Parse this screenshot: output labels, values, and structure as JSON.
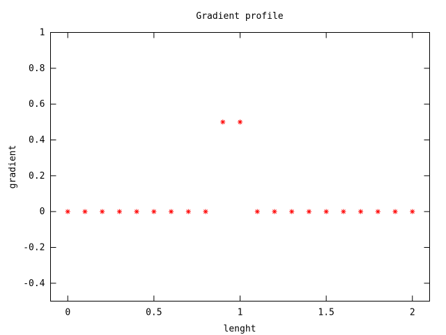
{
  "chart_data": {
    "type": "scatter",
    "title": "Gradient profile",
    "xlabel": "lenght",
    "ylabel": "gradient",
    "xlim": [
      -0.1,
      2.1
    ],
    "ylim": [
      -0.5,
      1
    ],
    "xticks": [
      {
        "value": 0,
        "label": "0"
      },
      {
        "value": 0.5,
        "label": "0.5"
      },
      {
        "value": 1,
        "label": "1"
      },
      {
        "value": 1.5,
        "label": "1.5"
      },
      {
        "value": 2,
        "label": "2"
      }
    ],
    "yticks": [
      {
        "value": -0.4,
        "label": "-0.4"
      },
      {
        "value": -0.2,
        "label": "-0.2"
      },
      {
        "value": 0,
        "label": "0"
      },
      {
        "value": 0.2,
        "label": "0.2"
      },
      {
        "value": 0.4,
        "label": "0.4"
      },
      {
        "value": 0.6,
        "label": "0.6"
      },
      {
        "value": 0.8,
        "label": "0.8"
      },
      {
        "value": 1,
        "label": "1"
      }
    ],
    "grid": false,
    "marker": "star",
    "color": "#ff0000",
    "series": [
      {
        "x": [
          0,
          0.1,
          0.2,
          0.3,
          0.4,
          0.5,
          0.6,
          0.7,
          0.8,
          0.9,
          1.0,
          1.1,
          1.2,
          1.3,
          1.4,
          1.5,
          1.6,
          1.7,
          1.8,
          1.9,
          2.0
        ],
        "y": [
          0,
          0,
          0,
          0,
          0,
          0,
          0,
          0,
          0,
          0.5,
          0.5,
          0,
          0,
          0,
          0,
          0,
          0,
          0,
          0,
          0,
          0
        ]
      }
    ]
  }
}
